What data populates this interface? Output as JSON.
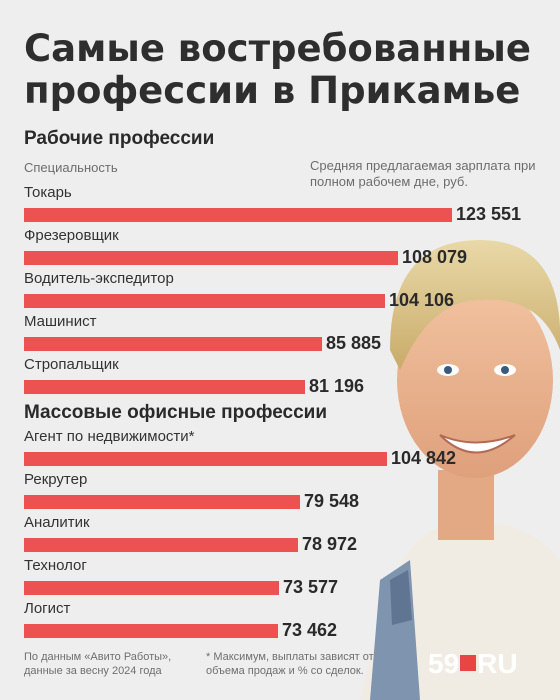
{
  "title_lines": [
    "Самые востребованные",
    "профессии в Прикамье"
  ],
  "sections": {
    "working": "Рабочие профессии",
    "office": "Массовые офисные профессии"
  },
  "columns": {
    "specialty": "Специальность",
    "salary": "Средняя предлагаемая зарплата при полном рабочем дне, руб."
  },
  "chart_data": {
    "type": "bar",
    "title": "Самые востребованные профессии в Прикамье",
    "xlabel": "Средняя предлагаемая зарплата при полном рабочем дне, руб.",
    "ylabel": "Специальность",
    "orientation": "horizontal",
    "groups": [
      {
        "name": "Рабочие профессии",
        "categories": [
          "Токарь",
          "Фрезеровщик",
          "Водитель-экспедитор",
          "Машинист",
          "Стропальщик"
        ],
        "values": [
          123551,
          108079,
          104106,
          85885,
          81196
        ],
        "value_labels": [
          "123 551",
          "108 079",
          "104 106",
          "85 885",
          "81 196"
        ]
      },
      {
        "name": "Массовые офисные профессии",
        "categories": [
          "Агент по недвижимости*",
          "Рекрутер",
          "Аналитик",
          "Технолог",
          "Логист"
        ],
        "values": [
          104842,
          79548,
          78972,
          73577,
          73462
        ],
        "value_labels": [
          "104 842",
          "79 548",
          "78 972",
          "73 577",
          "73 462"
        ]
      }
    ],
    "bar_color": "#ec5252"
  },
  "footnotes": {
    "source": [
      "По данным «Авито Работы»,",
      "данные за весну 2024 года"
    ],
    "note": [
      "* Максимум, выплаты зависят от",
      "объема продаж и % со сделок."
    ]
  },
  "logo": {
    "left": "59",
    "right": "RU"
  },
  "icons": {
    "logo_square": "red-square-icon"
  }
}
